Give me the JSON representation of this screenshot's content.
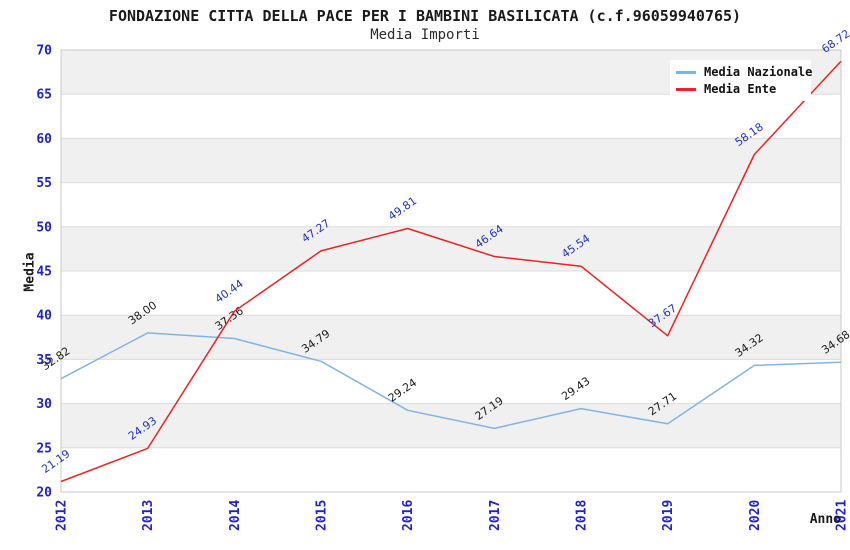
{
  "chart": {
    "title": "FONDAZIONE CITTA DELLA PACE PER I BAMBINI BASILICATA (c.f.96059940765)",
    "subtitle": "Media Importi"
  },
  "chart_data": {
    "type": "line",
    "x": [
      2012,
      2013,
      2014,
      2015,
      2016,
      2017,
      2018,
      2019,
      2020,
      2021
    ],
    "xlabel": "Anno",
    "ylabel": "Media",
    "ylim": [
      20,
      70
    ],
    "ytick_step": 5,
    "grid": "horizontal-bands-alternating",
    "legend_position": "top-right",
    "tick_color": "#2222CC",
    "band_color": "#F0F0F0",
    "gridline_color": "#DCDCDC",
    "plot_border_color": "#C8C8C8",
    "series": [
      {
        "name": "Media Nazionale",
        "color": "#82B4E2",
        "label_color": "#1A1A1A",
        "values": [
          32.82,
          38.0,
          37.36,
          34.79,
          29.24,
          27.19,
          29.43,
          27.71,
          34.32,
          34.68
        ]
      },
      {
        "name": "Media Ente",
        "color": "#EE2222",
        "label_color": "#2233BB",
        "values": [
          21.19,
          24.93,
          40.44,
          47.27,
          49.81,
          46.64,
          45.54,
          37.67,
          58.18,
          68.72
        ]
      }
    ]
  }
}
